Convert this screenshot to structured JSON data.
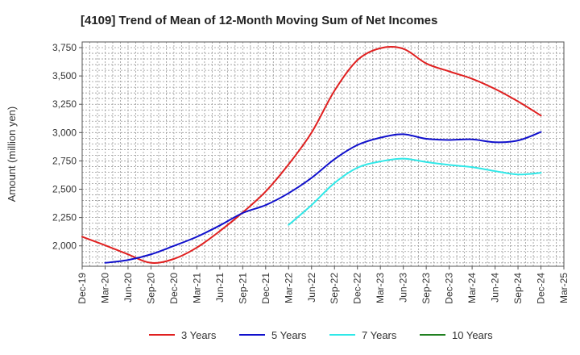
{
  "chart_data": {
    "type": "line",
    "title": "[4109]  Trend of Mean of 12-Month Moving Sum of Net Incomes",
    "ylabel": "Amount (million yen)",
    "xlabel": "",
    "ylim": [
      1820,
      3800
    ],
    "yticks": [
      2000,
      2250,
      2500,
      2750,
      3000,
      3250,
      3500,
      3750
    ],
    "ytick_labels": [
      "2,000",
      "2,250",
      "2,500",
      "2,750",
      "3,000",
      "3,250",
      "3,500",
      "3,750"
    ],
    "xtick_labels": [
      "Dec-19",
      "Mar-20",
      "Jun-20",
      "Sep-20",
      "Dec-20",
      "Mar-21",
      "Jun-21",
      "Sep-21",
      "Dec-21",
      "Mar-22",
      "Jun-22",
      "Sep-22",
      "Dec-22",
      "Mar-23",
      "Jun-23",
      "Sep-23",
      "Dec-23",
      "Mar-24",
      "Jun-24",
      "Sep-24",
      "Dec-24",
      "Mar-25"
    ],
    "grid": true,
    "legend_position": "bottom",
    "series": [
      {
        "name": "3 Years",
        "color": "#e02020",
        "points": [
          [
            "Dec-19",
            2080
          ],
          [
            "Mar-20",
            2005
          ],
          [
            "Jun-20",
            1925
          ],
          [
            "Sep-20",
            1850
          ],
          [
            "Dec-20",
            1885
          ],
          [
            "Mar-21",
            1985
          ],
          [
            "Jun-21",
            2130
          ],
          [
            "Sep-21",
            2295
          ],
          [
            "Dec-21",
            2480
          ],
          [
            "Mar-22",
            2720
          ],
          [
            "Jun-22",
            3000
          ],
          [
            "Sep-22",
            3370
          ],
          [
            "Dec-22",
            3640
          ],
          [
            "Mar-23",
            3745
          ],
          [
            "Jun-23",
            3740
          ],
          [
            "Sep-23",
            3610
          ],
          [
            "Dec-23",
            3540
          ],
          [
            "Mar-24",
            3475
          ],
          [
            "Jun-24",
            3385
          ],
          [
            "Sep-24",
            3275
          ],
          [
            "Dec-24",
            3150
          ]
        ]
      },
      {
        "name": "5 Years",
        "color": "#1010cc",
        "points": [
          [
            "Mar-20",
            1850
          ],
          [
            "Jun-20",
            1875
          ],
          [
            "Sep-20",
            1925
          ],
          [
            "Dec-20",
            2000
          ],
          [
            "Mar-21",
            2080
          ],
          [
            "Jun-21",
            2180
          ],
          [
            "Sep-21",
            2290
          ],
          [
            "Dec-21",
            2360
          ],
          [
            "Mar-22",
            2465
          ],
          [
            "Jun-22",
            2600
          ],
          [
            "Sep-22",
            2765
          ],
          [
            "Dec-22",
            2890
          ],
          [
            "Mar-23",
            2955
          ],
          [
            "Jun-23",
            2985
          ],
          [
            "Sep-23",
            2945
          ],
          [
            "Dec-23",
            2935
          ],
          [
            "Mar-24",
            2940
          ],
          [
            "Jun-24",
            2915
          ],
          [
            "Sep-24",
            2930
          ],
          [
            "Dec-24",
            3005
          ]
        ]
      },
      {
        "name": "7 Years",
        "color": "#30e8e8",
        "points": [
          [
            "Mar-22",
            2185
          ],
          [
            "Jun-22",
            2360
          ],
          [
            "Sep-22",
            2555
          ],
          [
            "Dec-22",
            2690
          ],
          [
            "Mar-23",
            2745
          ],
          [
            "Jun-23",
            2770
          ],
          [
            "Sep-23",
            2740
          ],
          [
            "Dec-23",
            2715
          ],
          [
            "Mar-24",
            2695
          ],
          [
            "Jun-24",
            2660
          ],
          [
            "Sep-24",
            2630
          ],
          [
            "Dec-24",
            2645
          ]
        ]
      },
      {
        "name": "10 Years",
        "color": "#208020",
        "points": []
      }
    ]
  }
}
